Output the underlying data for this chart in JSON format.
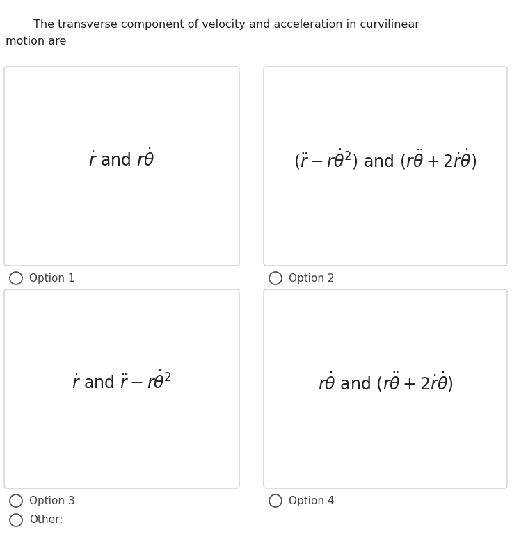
{
  "title_line1": "The transverse component of velocity and acceleration in curvilinear",
  "title_line2": "motion are",
  "title_fontsize": 11.5,
  "bg_color": "#ffffff",
  "box_bg": "#ffffff",
  "box_border": "#d0d0d0",
  "text_color": "#222222",
  "option_label_color": "#444444",
  "formula_fontsize": 17,
  "option_fontsize": 11,
  "formulas": [
    "$\\dot{r}\\ \\mathrm{and}\\ r\\dot{\\theta}$",
    "$(\\ddot{r} - r\\dot{\\theta}^2)\\ \\mathrm{and}\\ (r\\ddot{\\theta} + 2\\dot{r}\\dot{\\theta})$",
    "$\\dot{r}\\ \\mathrm{and}\\ \\ddot{r} - r\\dot{\\theta}^2$",
    "$r\\dot{\\theta}\\ \\mathrm{and}\\ (r\\ddot{\\theta} + 2\\dot{r}\\dot{\\theta})$"
  ],
  "option_labels": [
    "Option 1",
    "Option 2",
    "Option 3",
    "Option 4"
  ],
  "other_label": "Other:"
}
